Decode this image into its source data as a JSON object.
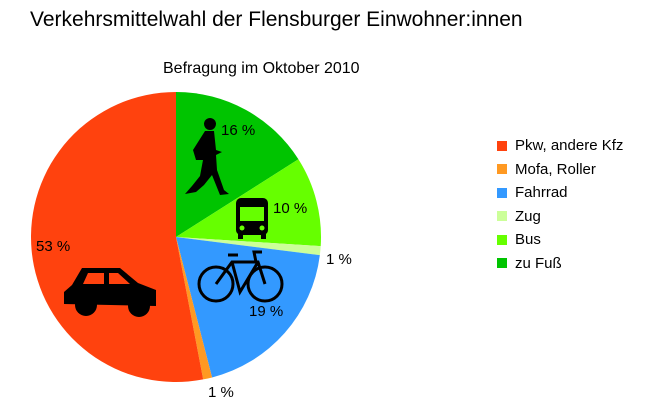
{
  "chart_data": {
    "type": "pie",
    "title": "Verkehrsmittelwahl der Flensburger Einwohner:innen",
    "subtitle": "Befragung im Oktober 2010",
    "slices": [
      {
        "label": "zu Fuß",
        "value": 16,
        "data_label": "16 %",
        "color": "#00c400",
        "icon": "pedestrian-icon"
      },
      {
        "label": "Bus",
        "value": 10,
        "data_label": "10 %",
        "color": "#66ff00",
        "icon": "bus-icon"
      },
      {
        "label": "Zug",
        "value": 1,
        "data_label": "1 %",
        "color": "#ccff99",
        "icon": ""
      },
      {
        "label": "Fahrrad",
        "value": 19,
        "data_label": "19 %",
        "color": "#3399ff",
        "icon": "bicycle-icon"
      },
      {
        "label": "Mofa, Roller",
        "value": 1,
        "data_label": "1 %",
        "color": "#ff9922",
        "icon": ""
      },
      {
        "label": "Pkw, andere Kfz",
        "value": 53,
        "data_label": "53 %",
        "color": "#ff420e",
        "icon": "car-icon"
      }
    ],
    "legend_order": [
      5,
      4,
      3,
      2,
      1,
      0
    ],
    "legend_placement": "right"
  }
}
